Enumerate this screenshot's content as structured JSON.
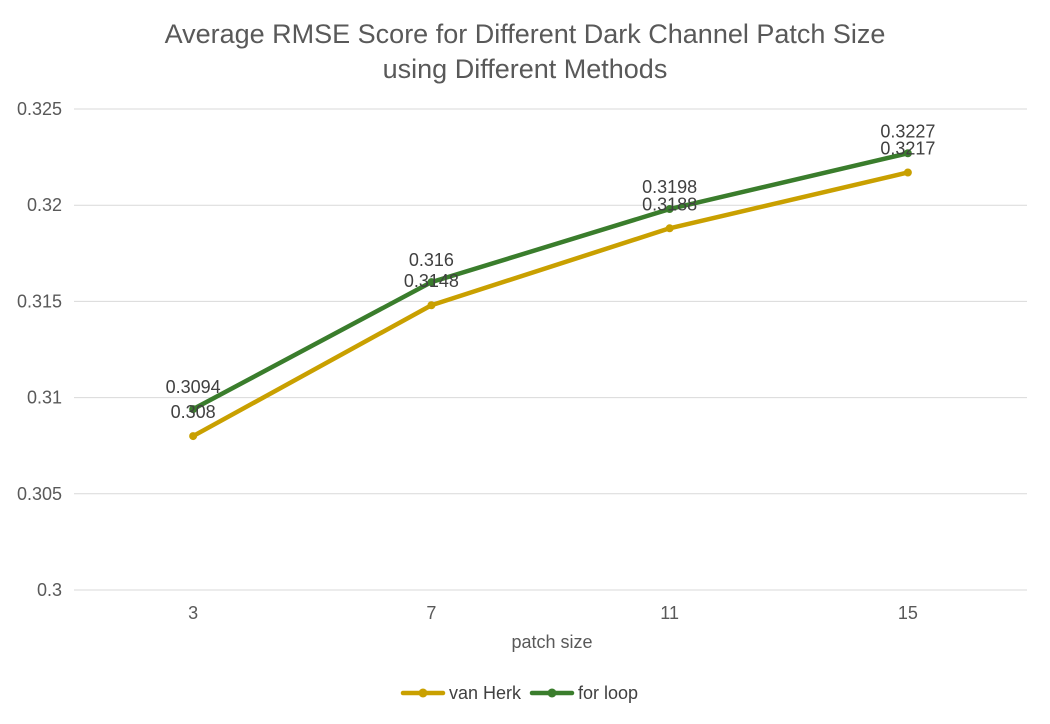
{
  "chart_data": {
    "type": "line",
    "title_lines": [
      "Average RMSE Score for Different Dark Channel Patch Size",
      "using Different Methods"
    ],
    "xlabel": "patch size",
    "ylabel": "",
    "categories": [
      "3",
      "7",
      "11",
      "15"
    ],
    "ylim": [
      0.3,
      0.325
    ],
    "yticks": [
      "0.3",
      "0.305",
      "0.31",
      "0.315",
      "0.32",
      "0.325"
    ],
    "grid": true,
    "legend_position": "bottom",
    "series": [
      {
        "name": "van Herk",
        "color": "#C9A000",
        "values": [
          0.308,
          0.3148,
          0.3188,
          0.3217
        ],
        "labels": [
          "0.308",
          "0.3148",
          "0.3188",
          "0.3217"
        ]
      },
      {
        "name": "for loop",
        "color": "#3A7D2C",
        "values": [
          0.3094,
          0.316,
          0.3198,
          0.3227
        ],
        "labels": [
          "0.3094",
          "0.316",
          "0.3198",
          "0.3227"
        ]
      }
    ]
  }
}
